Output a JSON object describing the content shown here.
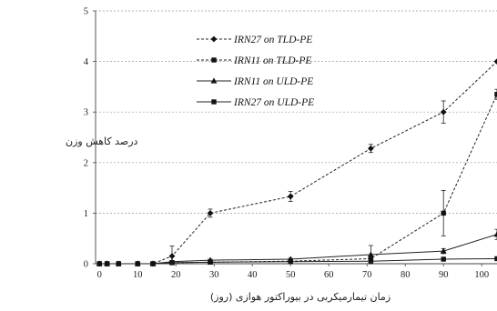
{
  "chart_data": {
    "type": "line",
    "title": "",
    "xlabel": "زمان تیمارمیکربی در بیوراکتور هوازی (روز)",
    "ylabel": "درصد کاهش وزن",
    "xlim": [
      -1,
      104
    ],
    "ylim": [
      0,
      5
    ],
    "xticks": [
      0,
      10,
      20,
      30,
      40,
      50,
      60,
      70,
      80,
      90,
      100
    ],
    "yticks": [
      0,
      1,
      2,
      3,
      4,
      5
    ],
    "grid": "horizontal-dashed",
    "legend_position": "top-left",
    "series": [
      {
        "name": "IRN27 on TLD-PE",
        "marker": "diamond",
        "line": "dashed",
        "x": [
          0,
          2,
          5,
          10,
          14,
          19,
          29,
          50,
          71,
          90,
          104
        ],
        "y": [
          0,
          0,
          0,
          0,
          0,
          0.15,
          1.0,
          1.33,
          2.28,
          3.0,
          4.0
        ],
        "err": [
          0,
          0,
          0,
          0,
          0,
          0.2,
          0.08,
          0.1,
          0.08,
          0.22,
          0
        ]
      },
      {
        "name": "IRN11 on TLD-PE",
        "marker": "square",
        "line": "dashed",
        "x": [
          0,
          2,
          5,
          10,
          14,
          19,
          29,
          50,
          71,
          90,
          104
        ],
        "y": [
          0,
          0,
          0,
          0,
          0,
          0.02,
          0.03,
          0.05,
          0.1,
          1.0,
          3.35
        ],
        "err": [
          0,
          0,
          0,
          0,
          0,
          0,
          0,
          0,
          0.05,
          0.45,
          0.1
        ]
      },
      {
        "name": "IRN11 on ULD-PE",
        "marker": "triangle",
        "line": "solid",
        "x": [
          0,
          2,
          5,
          10,
          14,
          19,
          29,
          50,
          71,
          90,
          104
        ],
        "y": [
          0,
          0,
          0,
          0,
          0,
          0.04,
          0.07,
          0.09,
          0.18,
          0.25,
          0.58
        ],
        "err": [
          0,
          0,
          0,
          0,
          0,
          0.02,
          0.02,
          0.02,
          0.18,
          0.05,
          0.1
        ]
      },
      {
        "name": "IRN27 on ULD-PE",
        "marker": "square",
        "line": "solid",
        "x": [
          0,
          2,
          5,
          10,
          14,
          19,
          29,
          50,
          71,
          90,
          104
        ],
        "y": [
          0,
          0,
          0,
          0,
          0,
          0.02,
          0.03,
          0.04,
          0.05,
          0.09,
          0.1
        ],
        "err": [
          0,
          0,
          0,
          0,
          0,
          0,
          0,
          0,
          0,
          0,
          0
        ]
      }
    ]
  }
}
